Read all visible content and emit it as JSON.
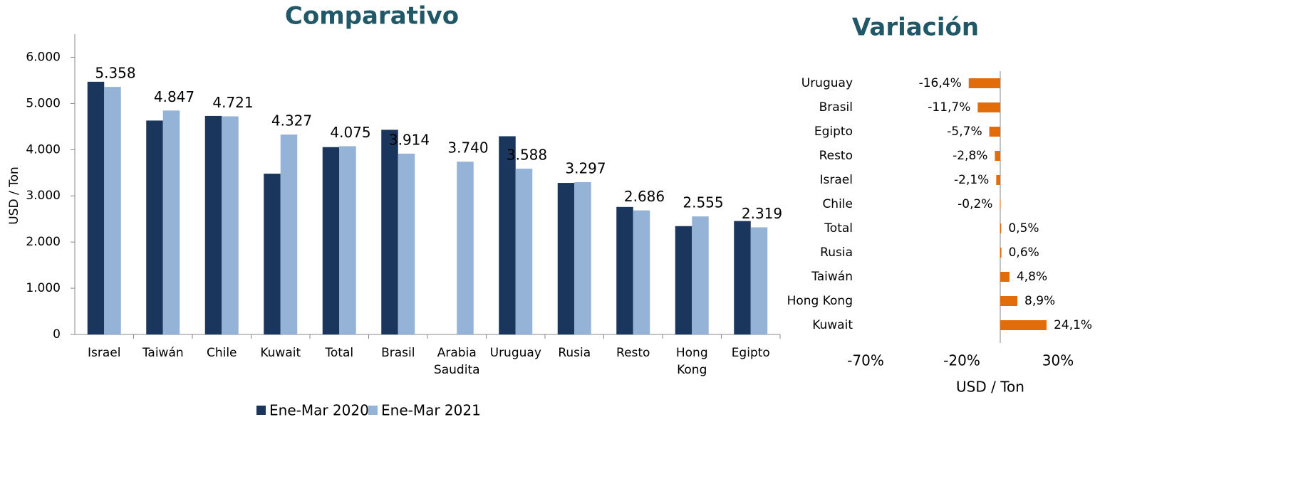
{
  "chart_data": [
    {
      "type": "bar",
      "title": "Comparativo",
      "ylabel": "USD / Ton",
      "categories": [
        "Israel",
        "Taiwán",
        "Chile",
        "Kuwait",
        "Total",
        "Brasil",
        "Arabia Saudita",
        "Uruguay",
        "Rusia",
        "Resto",
        "Hong Kong",
        "Egipto"
      ],
      "series": [
        {
          "name": "Ene-Mar 2020",
          "color": "#1b365d",
          "values": [
            5470,
            4630,
            4730,
            3480,
            4055,
            4430,
            null,
            4290,
            3280,
            2760,
            2345,
            2455
          ]
        },
        {
          "name": "Ene-Mar 2021",
          "color": "#95b3d7",
          "values": [
            5358,
            4847,
            4721,
            4327,
            4075,
            3914,
            3740,
            3588,
            3297,
            2686,
            2555,
            2319
          ],
          "value_labels": [
            "5.358",
            "4.847",
            "4.721",
            "4.327",
            "4.075",
            "3.914",
            "3.740",
            "3.588",
            "3.297",
            "2.686",
            "2.555",
            "2.319"
          ]
        }
      ],
      "ylim": [
        0,
        6500
      ],
      "yticks": [
        0,
        {
          "value": 1000,
          "label": "1.000"
        },
        {
          "value": 2000,
          "label": "2.000"
        },
        {
          "value": 3000,
          "label": "3.000"
        },
        {
          "value": 4000,
          "label": "4.000"
        },
        {
          "value": 5000,
          "label": "5.000"
        },
        {
          "value": 6000,
          "label": "6.000"
        }
      ],
      "legend": "bottom"
    },
    {
      "type": "hbar",
      "title": "Variación",
      "xlabel": "USD / Ton",
      "color": "#e36c0a",
      "categories": [
        "Uruguay",
        "Brasil",
        "Egipto",
        "Resto",
        "Israel",
        "Chile",
        "Total",
        "Rusia",
        "Taiwán",
        "Hong Kong",
        "Kuwait"
      ],
      "values": [
        -16.4,
        -11.7,
        -5.7,
        -2.8,
        -2.1,
        -0.2,
        0.5,
        0.6,
        4.8,
        8.9,
        24.1
      ],
      "value_labels": [
        "-16,4%",
        "-11,7%",
        "-5,7%",
        "-2,8%",
        "-2,1%",
        "-0,2%",
        "0,5%",
        "0,6%",
        "4,8%",
        "8,9%",
        "24,1%"
      ],
      "xlim": [
        -70,
        30
      ],
      "xticks": [
        {
          "value": -70,
          "label": "-70%"
        },
        {
          "value": -20,
          "label": "-20%"
        },
        {
          "value": 30,
          "label": "30%"
        }
      ]
    }
  ]
}
